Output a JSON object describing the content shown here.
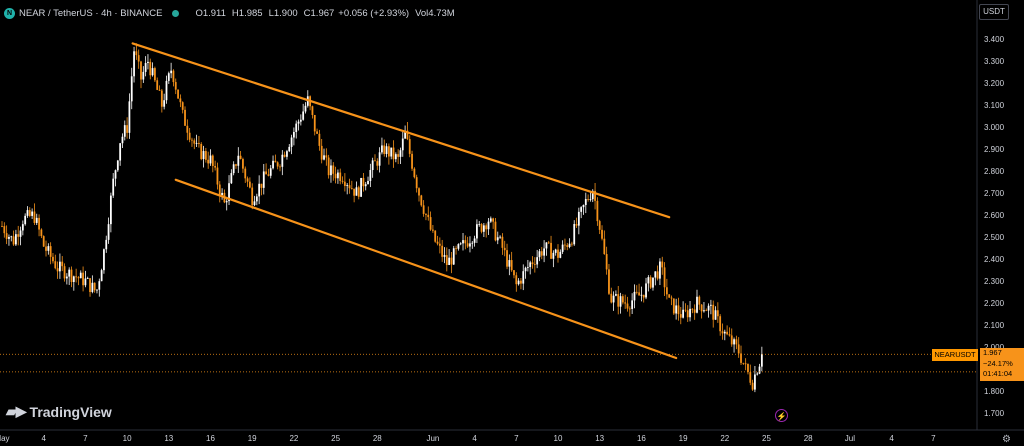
{
  "header": {
    "symbol_title": "NEAR / TetherUS · 4h · BINANCE",
    "open_label": "O",
    "open": "1.911",
    "high_label": "H",
    "high": "1.985",
    "low_label": "L",
    "low": "1.900",
    "close_label": "C",
    "close": "1.967",
    "change": "+0.056 (+2.93%)",
    "vol_label": "Vol",
    "vol": "4.73M"
  },
  "currency": "USDT",
  "branding": "TradingView",
  "price_tag": {
    "symbol": "NEARUSDT",
    "price": "1.967",
    "change": "−24.17%",
    "countdown": "01:41:04"
  },
  "colors": {
    "background": "#000000",
    "up": "#ffffff",
    "down": "#f7931a",
    "channel": "#f7931a",
    "axis_text": "#d1d4dc"
  },
  "icons": [
    "tradingview-logo-icon",
    "flash-icon",
    "gear-icon"
  ],
  "chart_data": {
    "type": "candlestick",
    "title": "NEAR / TetherUS · 4h · BINANCE",
    "y_ticks": [
      "3.400",
      "3.300",
      "3.200",
      "3.100",
      "3.000",
      "2.900",
      "2.800",
      "2.700",
      "2.600",
      "2.500",
      "2.400",
      "2.300",
      "2.200",
      "2.100",
      "2.000",
      "1.900",
      "1.800",
      "1.700"
    ],
    "ylim": [
      1.64,
      3.5
    ],
    "x_ticks": [
      "May",
      "4",
      "7",
      "10",
      "13",
      "16",
      "19",
      "22",
      "25",
      "28",
      "Jun",
      "4",
      "7",
      "10",
      "13",
      "16",
      "19",
      "22",
      "25",
      "28",
      "Jul",
      "4",
      "7"
    ],
    "x_tick_days": [
      1,
      4,
      7,
      10,
      13,
      16,
      19,
      22,
      25,
      28,
      32,
      35,
      38,
      41,
      44,
      47,
      50,
      53,
      56,
      59,
      62,
      65,
      68
    ],
    "xlim_days": [
      1,
      71
    ],
    "anchors": [
      {
        "day": 1.0,
        "price": 2.55
      },
      {
        "day": 1.8,
        "price": 2.48
      },
      {
        "day": 2.5,
        "price": 2.58
      },
      {
        "day": 3.3,
        "price": 2.6
      },
      {
        "day": 4.0,
        "price": 2.46
      },
      {
        "day": 5.0,
        "price": 2.36
      },
      {
        "day": 6.0,
        "price": 2.33
      },
      {
        "day": 7.0,
        "price": 2.3
      },
      {
        "day": 7.8,
        "price": 2.25
      },
      {
        "day": 8.3,
        "price": 2.42
      },
      {
        "day": 9.0,
        "price": 2.75
      },
      {
        "day": 9.5,
        "price": 2.94
      },
      {
        "day": 10.0,
        "price": 3.0
      },
      {
        "day": 10.5,
        "price": 3.35
      },
      {
        "day": 11.0,
        "price": 3.22
      },
      {
        "day": 11.5,
        "price": 3.3
      },
      {
        "day": 12.0,
        "price": 3.2
      },
      {
        "day": 12.5,
        "price": 3.1
      },
      {
        "day": 13.2,
        "price": 3.27
      },
      {
        "day": 14.0,
        "price": 3.05
      },
      {
        "day": 15.0,
        "price": 2.9
      },
      {
        "day": 16.0,
        "price": 2.85
      },
      {
        "day": 17.0,
        "price": 2.65
      },
      {
        "day": 18.0,
        "price": 2.88
      },
      {
        "day": 19.0,
        "price": 2.68
      },
      {
        "day": 20.0,
        "price": 2.78
      },
      {
        "day": 21.0,
        "price": 2.85
      },
      {
        "day": 22.0,
        "price": 2.98
      },
      {
        "day": 23.0,
        "price": 3.12
      },
      {
        "day": 23.8,
        "price": 2.92
      },
      {
        "day": 24.5,
        "price": 2.8
      },
      {
        "day": 25.5,
        "price": 2.78
      },
      {
        "day": 26.5,
        "price": 2.7
      },
      {
        "day": 27.5,
        "price": 2.8
      },
      {
        "day": 28.5,
        "price": 2.9
      },
      {
        "day": 29.5,
        "price": 2.85
      },
      {
        "day": 30.0,
        "price": 2.97
      },
      {
        "day": 31.0,
        "price": 2.7
      },
      {
        "day": 32.0,
        "price": 2.5
      },
      {
        "day": 33.0,
        "price": 2.38
      },
      {
        "day": 34.0,
        "price": 2.45
      },
      {
        "day": 35.0,
        "price": 2.52
      },
      {
        "day": 36.0,
        "price": 2.58
      },
      {
        "day": 37.0,
        "price": 2.45
      },
      {
        "day": 38.0,
        "price": 2.28
      },
      {
        "day": 39.0,
        "price": 2.38
      },
      {
        "day": 40.0,
        "price": 2.45
      },
      {
        "day": 41.0,
        "price": 2.42
      },
      {
        "day": 42.0,
        "price": 2.5
      },
      {
        "day": 43.0,
        "price": 2.66
      },
      {
        "day": 43.5,
        "price": 2.72
      },
      {
        "day": 44.0,
        "price": 2.55
      },
      {
        "day": 44.8,
        "price": 2.22
      },
      {
        "day": 46.0,
        "price": 2.2
      },
      {
        "day": 47.0,
        "price": 2.24
      },
      {
        "day": 48.0,
        "price": 2.33
      },
      {
        "day": 48.4,
        "price": 2.36
      },
      {
        "day": 49.0,
        "price": 2.2
      },
      {
        "day": 50.0,
        "price": 2.14
      },
      {
        "day": 51.0,
        "price": 2.2
      },
      {
        "day": 52.0,
        "price": 2.17
      },
      {
        "day": 53.0,
        "price": 2.06
      },
      {
        "day": 54.0,
        "price": 1.98
      },
      {
        "day": 54.5,
        "price": 1.9
      },
      {
        "day": 55.0,
        "price": 1.84
      },
      {
        "day": 55.4,
        "price": 1.92
      },
      {
        "day": 55.8,
        "price": 1.97
      }
    ],
    "channel_lines": [
      {
        "name": "upper-channel-line",
        "start": {
          "day": 10.4,
          "price": 3.38
        },
        "end": {
          "day": 49.0,
          "price": 2.59
        }
      },
      {
        "name": "lower-channel-line",
        "start": {
          "day": 13.5,
          "price": 2.76
        },
        "end": {
          "day": 49.5,
          "price": 1.95
        }
      }
    ],
    "last_price": 1.967,
    "last_price_secondary": 1.887,
    "grid": false
  }
}
